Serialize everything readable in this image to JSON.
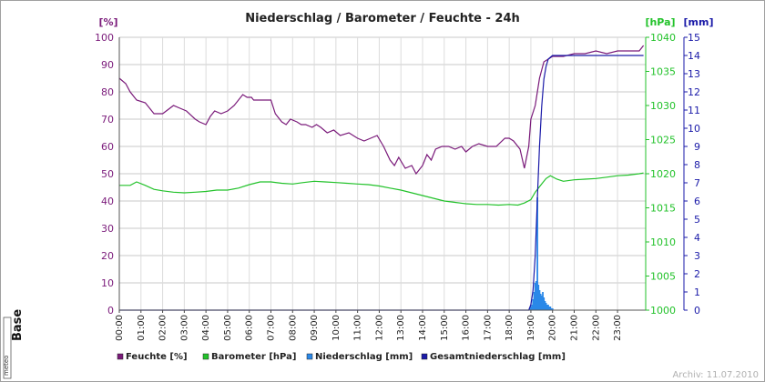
{
  "chart_data": {
    "type": "line",
    "title": "Niederschlag / Barometer / Feuchte - 24h",
    "units": {
      "left": "[%]",
      "right1": "[hPa]",
      "right2": "[mm]"
    },
    "y_left": {
      "label": "[%]",
      "ylim": [
        0,
        100
      ],
      "ticks": [
        0,
        10,
        20,
        30,
        40,
        50,
        60,
        70,
        80,
        90,
        100
      ]
    },
    "y_right1": {
      "label": "[hPa]",
      "ylim": [
        1000,
        1040
      ],
      "ticks": [
        1000,
        1005,
        1010,
        1015,
        1020,
        1025,
        1030,
        1035,
        1040
      ]
    },
    "y_right2": {
      "label": "[mm]",
      "ylim": [
        0,
        15
      ],
      "ticks": [
        0,
        1,
        2,
        3,
        4,
        5,
        6,
        7,
        8,
        9,
        10,
        11,
        12,
        13,
        14,
        15
      ]
    },
    "x_ticks": [
      "00:00",
      "01:00",
      "02:00",
      "03:00",
      "04:00",
      "05:00",
      "06:00",
      "07:00",
      "08:00",
      "09:00",
      "10:00",
      "11:00",
      "12:00",
      "13:00",
      "14:00",
      "15:00",
      "16:00",
      "17:00",
      "18:00",
      "19:00",
      "20:00",
      "21:00",
      "22:00",
      "23:00"
    ],
    "xlim": [
      0,
      24.3
    ],
    "grid": true,
    "legend_position": "bottom",
    "series": [
      {
        "name": "Feuchte [%]",
        "axis": "left",
        "color": "#7a1a7a",
        "kind": "line",
        "x": [
          0,
          0.3,
          0.5,
          0.8,
          1.2,
          1.4,
          1.6,
          2.0,
          2.5,
          2.8,
          3.1,
          3.5,
          3.7,
          4.0,
          4.2,
          4.4,
          4.7,
          5.0,
          5.3,
          5.7,
          5.9,
          6.1,
          6.2,
          6.5,
          6.8,
          7.0,
          7.2,
          7.5,
          7.7,
          7.9,
          8.2,
          8.4,
          8.6,
          8.9,
          9.1,
          9.3,
          9.6,
          9.9,
          10.2,
          10.6,
          11.0,
          11.3,
          11.6,
          11.9,
          12.2,
          12.5,
          12.7,
          12.9,
          13.2,
          13.5,
          13.7,
          14.0,
          14.2,
          14.4,
          14.6,
          14.9,
          15.2,
          15.5,
          15.8,
          16.0,
          16.3,
          16.6,
          17.0,
          17.4,
          17.8,
          18.0,
          18.2,
          18.5,
          18.7,
          18.9,
          19.0,
          19.2,
          19.4,
          19.5,
          19.6,
          19.8,
          20.0,
          20.5,
          21.0,
          21.5,
          22.0,
          22.5,
          23.0,
          23.5,
          24.0,
          24.2
        ],
        "values": [
          85,
          83,
          80,
          77,
          76,
          74,
          72,
          72,
          75,
          74,
          73,
          70,
          69,
          68,
          71,
          73,
          72,
          73,
          75,
          79,
          78,
          78,
          77,
          77,
          77,
          77,
          72,
          69,
          68,
          70,
          69,
          68,
          68,
          67,
          68,
          67,
          65,
          66,
          64,
          65,
          63,
          62,
          63,
          64,
          60,
          55,
          53,
          56,
          52,
          53,
          50,
          53,
          57,
          55,
          59,
          60,
          60,
          59,
          60,
          58,
          60,
          61,
          60,
          60,
          63,
          63,
          62,
          59,
          52,
          60,
          70,
          75,
          85,
          88,
          91,
          92,
          93,
          93,
          94,
          94,
          95,
          94,
          95,
          95,
          95,
          97
        ]
      },
      {
        "name": "Barometer [hPa]",
        "axis": "right1",
        "color": "#22c22a",
        "kind": "line",
        "x": [
          0,
          0.5,
          0.8,
          1.2,
          1.6,
          2.0,
          2.5,
          3.0,
          3.5,
          4.0,
          4.5,
          5.0,
          5.5,
          6.0,
          6.5,
          7.0,
          7.5,
          8.0,
          8.5,
          9.0,
          9.5,
          10.0,
          10.5,
          11.0,
          11.5,
          12.0,
          12.5,
          13.0,
          13.5,
          14.0,
          14.5,
          15.0,
          15.5,
          16.0,
          16.5,
          17.0,
          17.5,
          18.0,
          18.4,
          18.7,
          19.0,
          19.2,
          19.5,
          19.7,
          19.9,
          20.2,
          20.5,
          21.0,
          21.5,
          22.0,
          22.5,
          23.0,
          23.5,
          24.0,
          24.2
        ],
        "values": [
          1018.3,
          1018.3,
          1018.8,
          1018.3,
          1017.7,
          1017.5,
          1017.3,
          1017.2,
          1017.3,
          1017.4,
          1017.6,
          1017.6,
          1017.9,
          1018.4,
          1018.8,
          1018.8,
          1018.6,
          1018.5,
          1018.7,
          1018.9,
          1018.8,
          1018.7,
          1018.6,
          1018.5,
          1018.4,
          1018.2,
          1017.9,
          1017.6,
          1017.2,
          1016.8,
          1016.4,
          1016.0,
          1015.8,
          1015.6,
          1015.5,
          1015.5,
          1015.4,
          1015.5,
          1015.4,
          1015.7,
          1016.2,
          1017.3,
          1018.5,
          1019.3,
          1019.7,
          1019.2,
          1018.9,
          1019.1,
          1019.2,
          1019.3,
          1019.5,
          1019.7,
          1019.8,
          1020.0,
          1020.1
        ]
      },
      {
        "name": "Niederschlag [mm]",
        "axis": "right2",
        "color": "#2a88e8",
        "kind": "bars",
        "x": [
          18.95,
          19.0,
          19.05,
          19.1,
          19.15,
          19.2,
          19.25,
          19.3,
          19.35,
          19.4,
          19.45,
          19.5,
          19.55,
          19.6,
          19.65,
          19.7,
          19.75,
          19.8,
          19.85,
          19.9,
          19.95,
          20.0
        ],
        "values": [
          0.1,
          0.2,
          0.3,
          0.6,
          1.0,
          1.5,
          1.6,
          6.2,
          1.4,
          1.1,
          0.9,
          0.8,
          1.0,
          0.7,
          0.5,
          0.4,
          0.3,
          0.3,
          0.2,
          0.2,
          0.1,
          0.1
        ]
      },
      {
        "name": "Gesamtniederschlag [mm]",
        "axis": "right2",
        "color": "#1a1aa8",
        "kind": "line",
        "x": [
          0,
          18.9,
          19.0,
          19.1,
          19.2,
          19.3,
          19.4,
          19.5,
          19.6,
          19.7,
          19.8,
          19.9,
          20.0,
          20.2,
          24.2
        ],
        "values": [
          0,
          0,
          0.3,
          1.1,
          3.0,
          6.2,
          9.0,
          11.2,
          12.7,
          13.4,
          13.8,
          13.9,
          14.0,
          14.0,
          14.0
        ]
      }
    ]
  },
  "branding": {
    "logo_text": "Base",
    "logo_small": "meteo"
  },
  "footer": {
    "archive": "Archiv: 11.07.2010"
  }
}
